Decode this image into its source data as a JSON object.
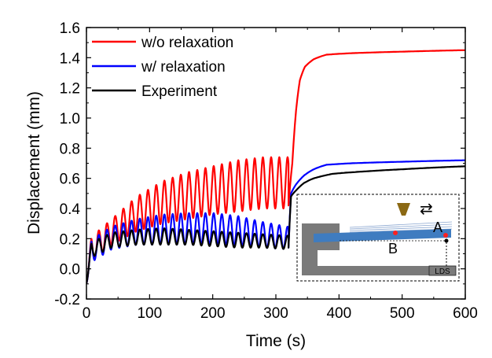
{
  "chart_data": {
    "type": "line",
    "xlabel": "Time (s)",
    "ylabel": "Displacement (mm)",
    "xlim": [
      0,
      600
    ],
    "ylim": [
      -0.2,
      1.6
    ],
    "xticks": [
      0,
      100,
      200,
      300,
      400,
      500,
      600
    ],
    "yticks": [
      -0.2,
      0.0,
      0.2,
      0.4,
      0.6,
      0.8,
      1.0,
      1.2,
      1.4,
      1.6
    ],
    "ytick_labels": [
      "-0.2",
      "0.0",
      "0.2",
      "0.4",
      "0.6",
      "0.8",
      "1.0",
      "1.2",
      "1.4",
      "1.6"
    ],
    "grid": false,
    "legend_position": "top-left",
    "cycle_period_s": 13,
    "series": [
      {
        "name": "w/o relaxation",
        "color": "#ff0000",
        "oscillation": {
          "start": 0,
          "end": 320,
          "peaks": [
            [
              10,
              0.22
            ],
            [
              40,
              0.33
            ],
            [
              80,
              0.48
            ],
            [
              120,
              0.58
            ],
            [
              160,
              0.64
            ],
            [
              200,
              0.68
            ],
            [
              240,
              0.72
            ],
            [
              280,
              0.74
            ],
            [
              318,
              0.74
            ]
          ],
          "troughs": [
            [
              10,
              0.05
            ],
            [
              40,
              0.16
            ],
            [
              80,
              0.25
            ],
            [
              120,
              0.3
            ],
            [
              160,
              0.33
            ],
            [
              200,
              0.36
            ],
            [
              240,
              0.38
            ],
            [
              280,
              0.4
            ],
            [
              318,
              0.4
            ]
          ]
        },
        "tail": [
          [
            320,
            0.42
          ],
          [
            326,
            0.7
          ],
          [
            332,
            1.05
          ],
          [
            338,
            1.25
          ],
          [
            346,
            1.34
          ],
          [
            360,
            1.39
          ],
          [
            380,
            1.42
          ],
          [
            420,
            1.43
          ],
          [
            500,
            1.44
          ],
          [
            600,
            1.45
          ]
        ]
      },
      {
        "name": "w/ relaxation",
        "color": "#0000ff",
        "oscillation": {
          "start": 0,
          "end": 320,
          "peaks": [
            [
              10,
              0.2
            ],
            [
              40,
              0.28
            ],
            [
              80,
              0.33
            ],
            [
              120,
              0.36
            ],
            [
              160,
              0.37
            ],
            [
              200,
              0.37
            ],
            [
              240,
              0.35
            ],
            [
              280,
              0.31
            ],
            [
              318,
              0.28
            ]
          ],
          "troughs": [
            [
              10,
              0.05
            ],
            [
              40,
              0.13
            ],
            [
              80,
              0.16
            ],
            [
              120,
              0.16
            ],
            [
              160,
              0.16
            ],
            [
              200,
              0.16
            ],
            [
              240,
              0.15
            ],
            [
              280,
              0.14
            ],
            [
              318,
              0.13
            ]
          ]
        },
        "tail": [
          [
            320,
            0.14
          ],
          [
            324,
            0.5
          ],
          [
            332,
            0.56
          ],
          [
            345,
            0.62
          ],
          [
            360,
            0.66
          ],
          [
            380,
            0.69
          ],
          [
            420,
            0.7
          ],
          [
            500,
            0.71
          ],
          [
            600,
            0.72
          ]
        ]
      },
      {
        "name": "Experiment",
        "color": "#000000",
        "oscillation": {
          "start": 0,
          "end": 320,
          "peaks": [
            [
              10,
              0.18
            ],
            [
              40,
              0.24
            ],
            [
              80,
              0.26
            ],
            [
              120,
              0.27
            ],
            [
              160,
              0.26
            ],
            [
              200,
              0.25
            ],
            [
              240,
              0.24
            ],
            [
              280,
              0.23
            ],
            [
              318,
              0.22
            ]
          ],
          "troughs": [
            [
              10,
              0.08
            ],
            [
              40,
              0.14
            ],
            [
              80,
              0.16
            ],
            [
              120,
              0.16
            ],
            [
              160,
              0.16
            ],
            [
              200,
              0.15
            ],
            [
              240,
              0.14
            ],
            [
              280,
              0.14
            ],
            [
              318,
              0.13
            ]
          ]
        },
        "tail": [
          [
            320,
            0.14
          ],
          [
            324,
            0.48
          ],
          [
            332,
            0.52
          ],
          [
            345,
            0.57
          ],
          [
            360,
            0.6
          ],
          [
            390,
            0.63
          ],
          [
            420,
            0.64
          ],
          [
            500,
            0.66
          ],
          [
            600,
            0.68
          ]
        ]
      }
    ],
    "inset": {
      "labels": {
        "a": "A",
        "b": "B",
        "lds": "LDS"
      },
      "arrow_symbol": "⇄"
    }
  }
}
